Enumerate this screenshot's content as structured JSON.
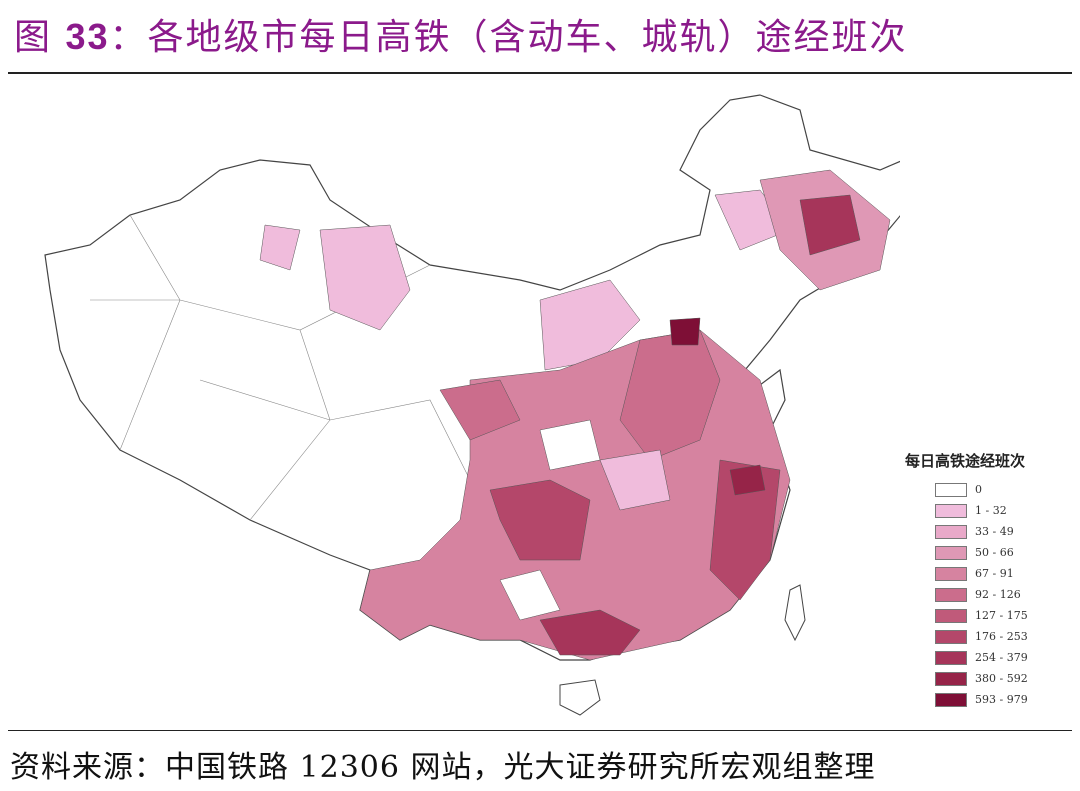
{
  "title": {
    "prefix": "图",
    "number": "33",
    "text": "：各地级市每日高铁（含动车、城轨）途经班次"
  },
  "source": "资料来源：中国铁路 12306 网站，光大证券研究所宏观组整理",
  "legend": {
    "title": "每日高铁途经班次",
    "items": [
      {
        "label": "0",
        "color": "#ffffff"
      },
      {
        "label": "1 - 32",
        "color": "#f0bcdc"
      },
      {
        "label": "33 - 49",
        "color": "#e9a9c9"
      },
      {
        "label": "50 - 66",
        "color": "#df98b5"
      },
      {
        "label": "67 - 91",
        "color": "#d683a0"
      },
      {
        "label": "92 - 126",
        "color": "#cb6d8c"
      },
      {
        "label": "127 - 175",
        "color": "#c05a7a"
      },
      {
        "label": "176 - 253",
        "color": "#b4476a"
      },
      {
        "label": "254 - 379",
        "color": "#a6355a"
      },
      {
        "label": "380 - 592",
        "color": "#962448"
      },
      {
        "label": "593 - 979",
        "color": "#7e0f36"
      }
    ]
  },
  "colors": {
    "title": "#8b1a8b"
  }
}
